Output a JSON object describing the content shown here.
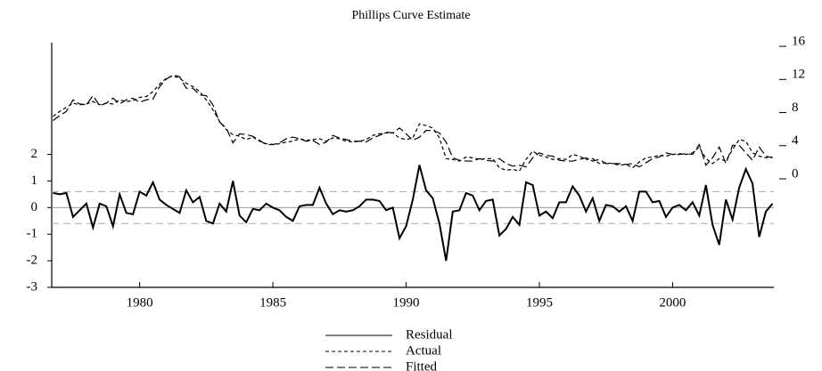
{
  "chart_data": {
    "type": "line",
    "title": "Phillips Curve Estimate",
    "x": [
      1976.75,
      1977,
      1977.25,
      1977.5,
      1977.75,
      1978,
      1978.25,
      1978.5,
      1978.75,
      1979,
      1979.25,
      1979.5,
      1979.75,
      1980,
      1980.25,
      1980.5,
      1980.75,
      1981,
      1981.25,
      1981.5,
      1981.75,
      1982,
      1982.25,
      1982.5,
      1982.75,
      1983,
      1983.25,
      1983.5,
      1983.75,
      1984,
      1984.25,
      1984.5,
      1984.75,
      1985,
      1985.25,
      1985.5,
      1985.75,
      1986,
      1986.25,
      1986.5,
      1986.75,
      1987,
      1987.25,
      1987.5,
      1987.75,
      1988,
      1988.25,
      1988.5,
      1988.75,
      1989,
      1989.25,
      1989.5,
      1989.75,
      1990,
      1990.25,
      1990.5,
      1990.75,
      1991,
      1991.25,
      1991.5,
      1991.75,
      1992,
      1992.25,
      1992.5,
      1992.75,
      1993,
      1993.25,
      1993.5,
      1993.75,
      1994,
      1994.25,
      1994.5,
      1994.75,
      1995,
      1995.25,
      1995.5,
      1995.75,
      1996,
      1996.25,
      1996.5,
      1996.75,
      1997,
      1997.25,
      1997.5,
      1997.75,
      1998,
      1998.25,
      1998.5,
      1998.75,
      1999,
      1999.25,
      1999.5,
      1999.75,
      2000,
      2000.25,
      2000.5,
      2000.75,
      2001,
      2001.25,
      2001.5,
      2001.75,
      2002,
      2002.25,
      2002.5,
      2002.75,
      2003,
      2003.25,
      2003.5,
      2003.75
    ],
    "xlim": [
      1976.7,
      2003.8
    ],
    "xticks": [
      1980,
      1985,
      1990,
      1995,
      2000
    ],
    "ylim": [
      -3,
      6.2
    ],
    "yticks": [
      -3,
      -2,
      -1,
      0,
      1,
      2
    ],
    "y2lim": [
      -13.65,
      15.9
    ],
    "y2ticks": [
      0,
      4,
      8,
      12,
      16
    ],
    "baseline": 0,
    "reference_lines": [
      -0.6,
      0.6
    ],
    "series": [
      {
        "name": "Residual",
        "color": "#000000",
        "dash": "none",
        "values": [
          0.55,
          0.5,
          0.55,
          -0.35,
          -0.1,
          0.15,
          -0.75,
          0.15,
          0.05,
          -0.7,
          0.5,
          -0.2,
          -0.25,
          0.6,
          0.45,
          0.95,
          0.3,
          0.1,
          -0.05,
          -0.2,
          0.65,
          0.2,
          0.4,
          -0.5,
          -0.6,
          0.15,
          -0.15,
          1.0,
          -0.3,
          -0.55,
          -0.05,
          -0.1,
          0.15,
          0.0,
          -0.1,
          -0.35,
          -0.5,
          0.05,
          0.1,
          0.1,
          0.75,
          0.15,
          -0.25,
          -0.1,
          -0.15,
          -0.1,
          0.05,
          0.3,
          0.3,
          0.25,
          -0.1,
          0.0,
          -1.15,
          -0.7,
          0.3,
          1.6,
          0.65,
          0.35,
          -0.6,
          -2.0,
          -0.15,
          -0.1,
          0.55,
          0.45,
          -0.1,
          0.25,
          0.3,
          -1.05,
          -0.8,
          -0.35,
          -0.65,
          0.95,
          0.85,
          -0.3,
          -0.15,
          -0.4,
          0.2,
          0.2,
          0.8,
          0.45,
          -0.15,
          0.35,
          -0.5,
          0.1,
          0.05,
          -0.15,
          0.05,
          -0.5,
          0.6,
          0.6,
          0.2,
          0.25,
          -0.35,
          0.0,
          0.1,
          -0.1,
          0.2,
          -0.3,
          0.85,
          -0.65,
          -1.4,
          0.3,
          -0.45,
          0.75,
          1.45,
          0.9,
          -1.1,
          -0.15,
          0.15
        ]
      },
      {
        "name": "Actual",
        "color": "#000000",
        "dash": "4,3",
        "axis": "y2",
        "values": [
          7.0,
          7.6,
          8.1,
          8.6,
          8.4,
          8.5,
          8.8,
          8.4,
          8.6,
          8.5,
          9.0,
          8.8,
          8.9,
          9.3,
          9.4,
          10.0,
          10.9,
          11.6,
          11.9,
          11.6,
          11.0,
          10.6,
          10.0,
          9.0,
          7.8,
          6.4,
          5.4,
          4.8,
          4.6,
          4.2,
          4.5,
          4.0,
          3.7,
          3.6,
          3.7,
          3.9,
          4.0,
          4.3,
          4.1,
          4.2,
          4.3,
          4.0,
          4.4,
          4.3,
          4.0,
          3.9,
          4.0,
          4.2,
          4.7,
          4.9,
          5.0,
          5.0,
          4.4,
          4.2,
          4.4,
          6.1,
          5.9,
          5.6,
          4.4,
          1.9,
          1.8,
          1.6,
          2.1,
          2.0,
          1.8,
          1.9,
          1.9,
          0.8,
          0.5,
          0.6,
          0.4,
          1.8,
          2.8,
          2.3,
          2.1,
          1.8,
          1.9,
          1.8,
          2.4,
          2.2,
          1.8,
          1.9,
          1.3,
          1.4,
          1.3,
          1.1,
          1.2,
          0.8,
          1.5,
          2.0,
          2.1,
          2.3,
          2.2,
          2.4,
          2.5,
          2.4,
          2.6,
          3.3,
          1.9,
          1.3,
          1.9,
          1.6,
          3.0,
          4.2,
          4.0,
          2.6,
          2.2,
          2.0,
          2.1
        ]
      },
      {
        "name": "Fitted",
        "color": "#000000",
        "dash": "9,4",
        "axis": "y2",
        "values": [
          6.5,
          7.1,
          7.6,
          9.0,
          8.5,
          8.4,
          9.5,
          8.3,
          8.6,
          9.2,
          8.5,
          9.0,
          9.2,
          8.7,
          9.0,
          9.1,
          10.6,
          11.5,
          12.0,
          11.8,
          10.4,
          10.4,
          9.6,
          9.5,
          8.4,
          6.3,
          5.6,
          3.8,
          4.9,
          4.8,
          4.6,
          4.1,
          3.6,
          3.6,
          3.8,
          4.3,
          4.5,
          4.3,
          4.0,
          4.1,
          3.6,
          3.9,
          4.7,
          4.4,
          4.2,
          4.0,
          4.0,
          3.9,
          4.4,
          4.7,
          5.1,
          5.0,
          5.6,
          4.9,
          4.1,
          4.5,
          5.3,
          5.3,
          5.0,
          3.9,
          2.0,
          1.7,
          1.6,
          1.6,
          1.9,
          1.7,
          1.6,
          1.9,
          1.3,
          1.0,
          1.1,
          0.9,
          2.0,
          2.6,
          2.3,
          2.2,
          1.7,
          1.6,
          1.6,
          1.8,
          2.0,
          1.6,
          1.8,
          1.3,
          1.3,
          1.3,
          1.2,
          1.3,
          0.9,
          1.4,
          1.9,
          2.1,
          2.6,
          2.4,
          2.4,
          2.5,
          2.4,
          3.6,
          1.1,
          2.0,
          3.3,
          1.3,
          3.5,
          3.5,
          2.6,
          1.7,
          3.3,
          2.2,
          2.0
        ]
      }
    ]
  }
}
